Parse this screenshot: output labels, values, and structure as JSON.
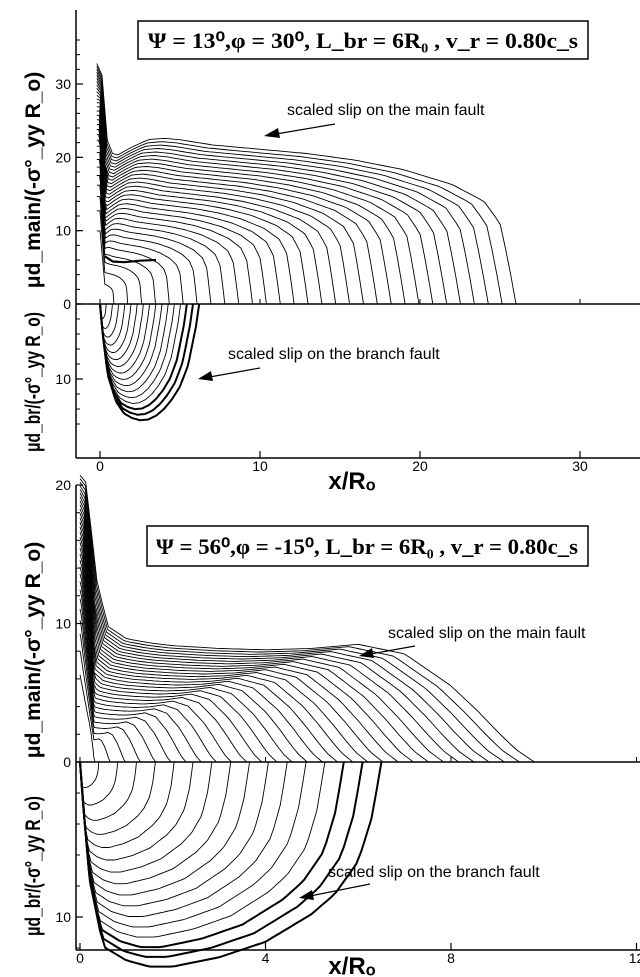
{
  "chart_data": [
    {
      "type": "line",
      "title": "Ψ = 13⁰,φ =  30⁰, L_br = 6R₀ , v_r = 0.80c_s",
      "xlabel": "x/Rₒ",
      "xticks": [
        0,
        10,
        20,
        30
      ],
      "xlim": [
        -1.2,
        30.5
      ],
      "grid": false,
      "main_panel": {
        "ylabel": "μd_main/(-σ°_yy R_o)",
        "yticks": [
          0,
          10,
          20,
          30
        ],
        "ylim": [
          0,
          38
        ],
        "annotation": "scaled slip on the main fault",
        "n_curves": 30,
        "envelope_x": [
          -0.2,
          0.0,
          0.3,
          0.6,
          1.0,
          2.0,
          3.0,
          4.0,
          5.0,
          7.0,
          10.0,
          13.0,
          16.0,
          19.0,
          22.0,
          24.0,
          25.0,
          25.5,
          26.0
        ],
        "envelope_y": [
          32.8,
          32.7,
          24.0,
          20.8,
          20.2,
          21.4,
          22.4,
          22.6,
          22.4,
          21.7,
          21.1,
          20.5,
          19.6,
          18.3,
          16.3,
          14.0,
          11.0,
          6.0,
          0.0
        ],
        "near_tip_plateau": {
          "x": [
            0.3,
            0.8,
            1.5,
            2.5,
            3.5
          ],
          "y": [
            6.5,
            5.8,
            5.7,
            5.9,
            6.0
          ]
        },
        "terminal_front_x": 26.0
      },
      "branch_panel": {
        "ylabel": "μd_br/(-σ°_yy R_o)",
        "yticks": [
          0,
          10
        ],
        "ylim": [
          0,
          16.5
        ],
        "annotation": "scaled slip on the branch fault",
        "n_curves": 16,
        "envelope_x": [
          0.0,
          0.2,
          0.5,
          1.0,
          1.5,
          2.0,
          2.5,
          3.0,
          3.5,
          4.0,
          4.5,
          5.0,
          5.5,
          6.0,
          6.2
        ],
        "envelope_y": [
          0.0,
          4.5,
          9.6,
          13.0,
          14.6,
          15.2,
          15.5,
          15.4,
          14.9,
          14.0,
          12.7,
          11.0,
          8.2,
          3.0,
          0.0
        ],
        "terminal_front_x": 6.2
      }
    },
    {
      "type": "line",
      "title": "Ψ = 56⁰,φ = -15⁰, L_br = 6R₀ , v_r = 0.80c_s",
      "xlabel": "x/Rₒ",
      "xticks": [
        0,
        4,
        8,
        12
      ],
      "xlim": [
        -0.05,
        12.1
      ],
      "grid": false,
      "main_panel": {
        "ylabel": "μd_main/(-σ°_yy R_o)",
        "yticks": [
          0,
          10,
          20
        ],
        "ylim": [
          0,
          22
        ],
        "annotation": "scaled slip on the main fault",
        "n_curves": 30,
        "envelope_x": [
          0.0,
          0.1,
          0.3,
          0.6,
          1.0,
          1.5,
          2.0,
          3.0,
          4.0,
          5.0,
          6.0,
          7.0,
          8.0,
          8.6,
          9.0,
          9.4,
          9.8
        ],
        "envelope_y": [
          20.7,
          20.2,
          14.0,
          9.8,
          8.9,
          8.6,
          8.4,
          8.2,
          8.1,
          8.2,
          8.5,
          7.8,
          5.5,
          3.6,
          2.2,
          0.9,
          0.0
        ],
        "terminal_front_x": 9.8
      },
      "branch_panel": {
        "ylabel": "μd_br/(-σ°_yy R_o)",
        "yticks": [
          0,
          10
        ],
        "ylim": [
          0,
          13.8
        ],
        "annotation": "scaled slip on the branch fault",
        "n_curves": 16,
        "envelope_x": [
          0.0,
          0.2,
          0.5,
          1.0,
          1.5,
          2.0,
          3.0,
          4.0,
          5.0,
          5.5,
          6.0,
          6.3,
          6.5
        ],
        "envelope_y": [
          0.0,
          7.5,
          11.9,
          12.8,
          13.2,
          13.2,
          12.6,
          11.6,
          9.8,
          8.5,
          6.4,
          3.5,
          0.0
        ],
        "terminal_front_x": 6.5
      }
    }
  ]
}
